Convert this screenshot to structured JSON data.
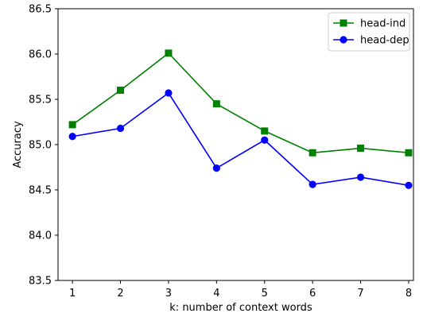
{
  "chart_data": {
    "type": "line",
    "title": "",
    "xlabel": "k: number of context words",
    "ylabel": "Accuracy",
    "x": [
      1,
      2,
      3,
      4,
      5,
      6,
      7,
      8
    ],
    "xticks": [
      "1",
      "2",
      "3",
      "4",
      "5",
      "6",
      "7",
      "8"
    ],
    "yticks": [
      "83.5",
      "84.0",
      "84.5",
      "85.0",
      "85.5",
      "86.0",
      "86.5"
    ],
    "xlim": [
      0.7,
      8.1
    ],
    "ylim": [
      83.5,
      86.5
    ],
    "grid": false,
    "legend_position": "top-right",
    "series": [
      {
        "name": "head-ind",
        "color": "#008000",
        "marker": "square",
        "values": [
          85.22,
          85.6,
          86.01,
          85.45,
          85.15,
          84.91,
          84.96,
          84.91
        ]
      },
      {
        "name": "head-dep",
        "color": "#0000ff",
        "marker": "circle",
        "values": [
          85.09,
          85.18,
          85.57,
          84.74,
          85.05,
          84.56,
          84.64,
          84.55
        ]
      }
    ]
  }
}
